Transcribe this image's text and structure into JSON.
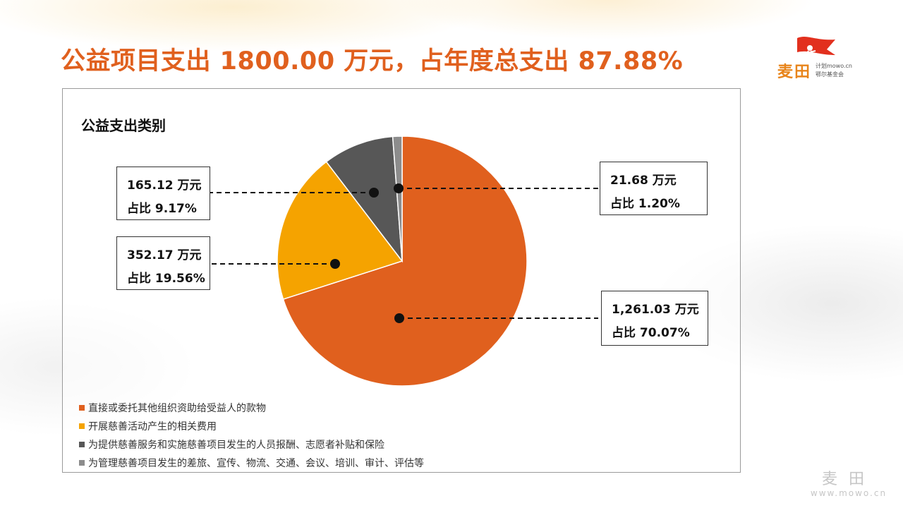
{
  "title": "公益项目支出 1800.00 万元，占年度总支出 87.88%",
  "logo": {
    "main": "麦田",
    "sub1": "计划mowo.cn",
    "sub2": "鄂尔基金会"
  },
  "chart_data": {
    "type": "pie",
    "title": "公益支出类别",
    "categories": [
      "直接或委托其他组织资助给受益人的款物",
      "开展慈善活动产生的相关费用",
      "为提供慈善服务和实施慈善项目发生的人员报酬、志愿者补贴和保险",
      "为管理慈善项目发生的差旅、宣传、物流、交通、会议、培训、审计、评估等"
    ],
    "values": [
      1261.03,
      352.17,
      165.12,
      21.68
    ],
    "percents": [
      70.07,
      19.56,
      9.17,
      1.2
    ],
    "colors": [
      "#E0601E",
      "#F5A300",
      "#575757",
      "#8C8C8C"
    ],
    "start_angle": "12 o'clock",
    "direction": "clockwise",
    "legend_position": "bottom-left",
    "labels": [
      {
        "value": "1,261.03 万元",
        "share": "占比 70.07%"
      },
      {
        "value": "352.17 万元",
        "share": "占比 19.56%"
      },
      {
        "value": "165.12 万元",
        "share": "占比 9.17%"
      },
      {
        "value": "21.68 万元",
        "share": "占比 1.20%"
      }
    ]
  },
  "watermark": {
    "main": "麦田",
    "site": "www.mowo.cn"
  }
}
